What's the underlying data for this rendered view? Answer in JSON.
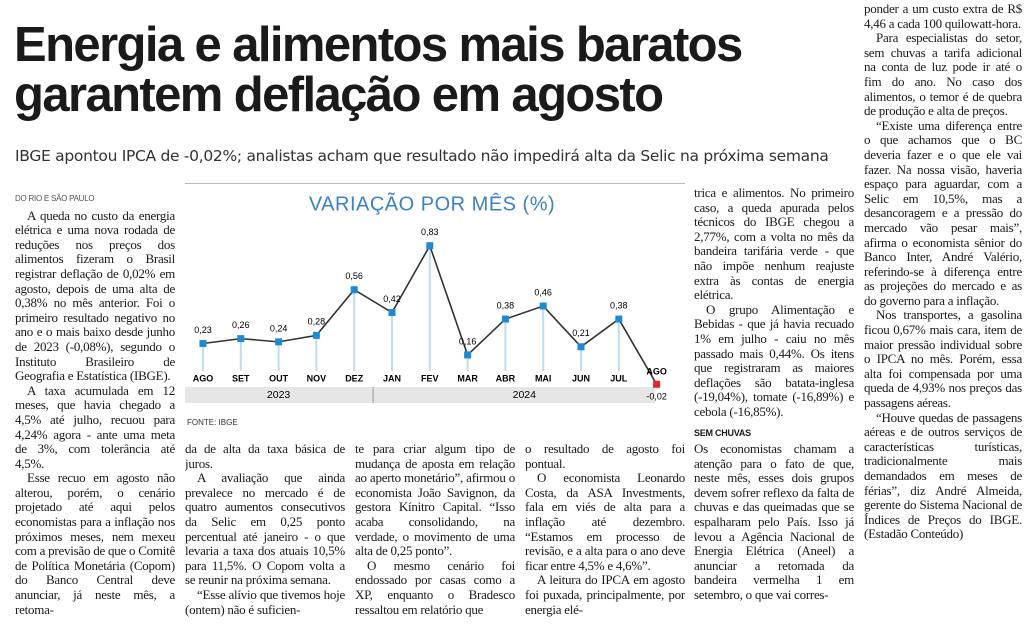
{
  "header": {
    "title_lines": [
      "Energia e alimentos mais baratos",
      "garantem deflação em agosto"
    ],
    "subtitle": "IBGE apontou IPCA de -0,02%; analistas acham que resultado não impedirá alta da Selic na próxima semana"
  },
  "byline": "DO RIO E SÃO PAULO",
  "columns": [
    {
      "paragraphs": [
        "A queda no custo da energia elétrica e uma nova rodada de reduções nos preços dos alimentos fizeram o Brasil registrar deflação de 0,02% em agosto, depois de uma alta de 0,38% no mês anterior. Foi o primeiro resultado negativo no ano e o mais baixo desde junho de 2023 (-0,08%), segundo o Instituto Brasileiro de Geografia e Estatística (IBGE).",
        "A taxa acumulada em 12 meses, que havia chegado a 4,5% até julho, recuou para 4,24% agora - ante uma meta de 3%, com tolerância até 4,5%.",
        "Esse recuo em agosto não alterou, porém, o cenário projetado até aqui pelos economistas para a inflação nos próximos meses, nem mexeu com a previsão de que o Comitê de Política Monetária (Copom) do Banco Central deve anunciar, já neste mês, a retoma-"
      ]
    },
    {
      "paragraphs": [
        "da de alta da taxa básica de juros.",
        "A avaliação que ainda prevalece no mercado é de quatro aumentos consecutivos da Selic em 0,25 ponto percentual até janeiro - o que levaria a taxa dos atuais 10,5% para 11,5%. O Copom volta a se reunir na próxima semana.",
        "“Esse alívio que tivemos hoje (ontem) não é suficien-"
      ]
    },
    {
      "paragraphs": [
        "te para criar algum tipo de mudança de aposta em relação ao aperto monetário”, afirmou o economista João Savignon, da gestora Kínitro Capital. “Isso acaba consolidando, na verdade, o movimento de uma alta de 0,25 ponto”.",
        "O mesmo cenário foi endossado por casas como a XP, enquanto o Bradesco ressaltou em relatório que"
      ]
    },
    {
      "paragraphs": [
        "o resultado de agosto foi pontual.",
        "O economista Leonardo Costa, da ASA Investments, fala em viés de alta para a inflação até dezembro. “Estamos em processo de revisão, e a alta para o ano deve ficar entre 4,5% e 4,6%”.",
        "A leitura do IPCA em agosto foi puxada, principalmente, por energia elé-"
      ]
    },
    {
      "paragraphs": [
        "trica e alimentos. No primeiro caso, a queda apurada pelos técnicos do IBGE chegou a 2,77%, com a volta no mês da bandeira tarifária verde - que não impõe nenhum reajuste extra às contas de energia elétrica.",
        "O grupo Alimentação e Bebidas - que já havia recuado 1% em julho - caiu no mês passado mais 0,44%. Os itens que registraram as maiores deflações são batata-inglesa (-19,04%), tomate (-16,89%) e cebola (-16,85%)."
      ],
      "subhead": "SEM CHUVAS",
      "paragraphs_after": [
        "Os economistas chamam a atenção para o fato de que, neste mês, esses dois grupos devem sofrer reflexo da falta de chuvas e das queimadas que se espalharam pelo País. Isso já levou a Agência Nacional de Energia Elétrica (Aneel) a anunciar a retomada da bandeira vermelha 1 em setembro, o que vai corres-"
      ]
    },
    {
      "paragraphs": [
        "ponder a um custo extra de R$ 4,46 a cada 100 quilowatt-hora.",
        "Para especialistas do setor, sem chuvas a tarifa adicional na conta de luz pode ir até o fim do ano. No caso dos alimentos, o temor é de quebra de produção e alta de preços.",
        "“Existe uma diferença entre o que achamos que o BC deveria fazer e o que ele vai fazer. Na nossa visão, haveria espaço para aguardar, com a Selic em 10,5%, mas a desancoragem e a pressão do mercado vão pesar mais”, afirma o economista sênior do Banco Inter, André Valério, referindo-se à diferença entre as projeções do mercado e as do governo para a inflação.",
        "Nos transportes, a gasolina ficou 0,67% mais cara, item de maior pressão individual sobre o IPCA no mês. Porém, essa alta foi compensada por uma queda de 4,93% nos preços das passagens aéreas.",
        "“Houve quedas de passagens aéreas e de outros serviços de características turísticas, tradicionalmente mais demandados em meses de férias”, diz André Almeida, gerente do Sistema Nacional de Índices de Preços do IBGE. (Estadão Conteúdo)"
      ]
    }
  ],
  "chart_data": {
    "type": "line",
    "title": "VARIAÇÃO POR MÊS (%)",
    "categories": [
      "AGO",
      "SET",
      "OUT",
      "NOV",
      "DEZ",
      "JAN",
      "FEV",
      "MAR",
      "ABR",
      "MAI",
      "JUN",
      "JUL",
      "AGO"
    ],
    "values": [
      0.23,
      0.26,
      0.24,
      0.28,
      0.56,
      0.42,
      0.83,
      0.16,
      0.38,
      0.46,
      0.21,
      0.38,
      -0.02
    ],
    "value_labels": [
      "0,23",
      "0,26",
      "0,24",
      "0,28",
      "0,56",
      "0,42",
      "0,83",
      "0,16",
      "0,38",
      "0,46",
      "0,21",
      "0,38",
      "-0,02"
    ],
    "year_groups": [
      "2023",
      "2024"
    ],
    "line_color": "#333333",
    "marker_colors": [
      "#1e8ad6",
      "#1e8ad6",
      "#1e8ad6",
      "#1e8ad6",
      "#1e8ad6",
      "#1e8ad6",
      "#1e8ad6",
      "#1e8ad6",
      "#1e8ad6",
      "#1e8ad6",
      "#1e8ad6",
      "#1e8ad6",
      "#e3242b"
    ],
    "source": "FONTE: IBGE"
  }
}
